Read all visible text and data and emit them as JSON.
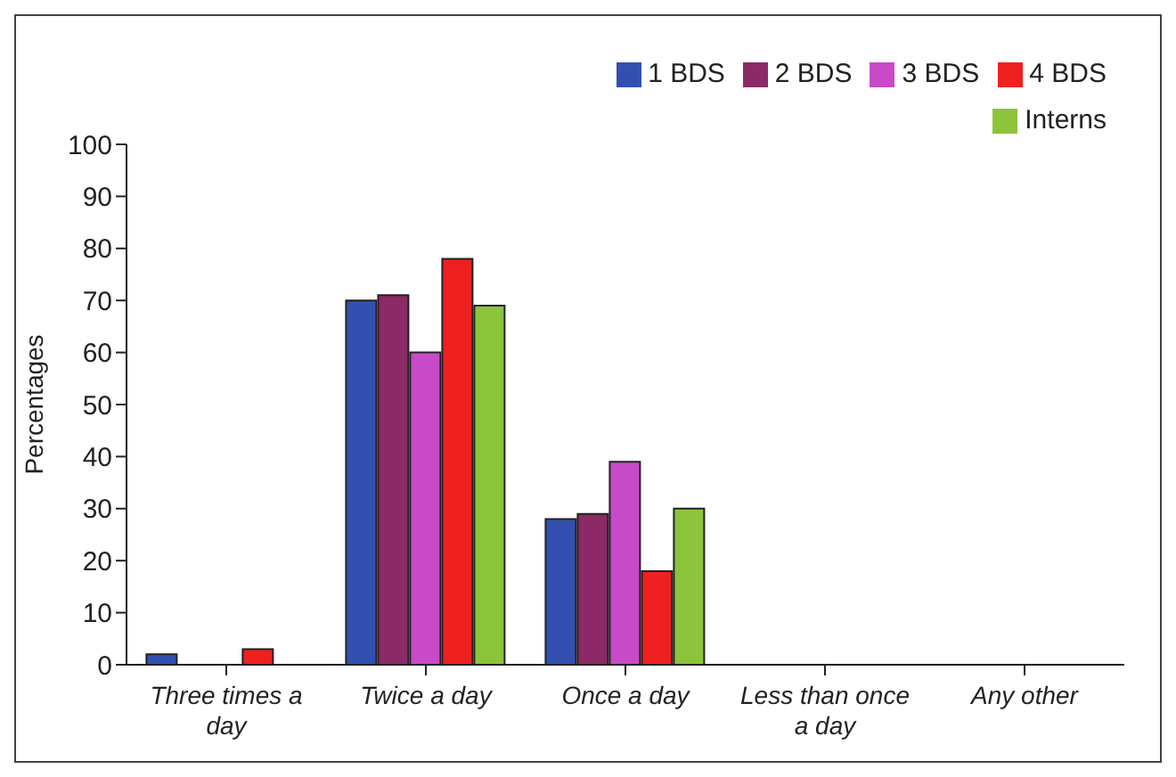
{
  "chart_data": {
    "type": "bar",
    "ylabel": "Percentages",
    "categories": [
      "Three times a day",
      "Twice a day",
      "Once a day",
      "Less than once a day",
      "Any other"
    ],
    "series": [
      {
        "name": "1 BDS",
        "color": "#3350b0",
        "values": [
          2,
          70,
          28,
          0,
          0
        ]
      },
      {
        "name": "2 BDS",
        "color": "#8b2a66",
        "values": [
          0,
          71,
          29,
          0,
          0
        ]
      },
      {
        "name": "3 BDS",
        "color": "#c84ac8",
        "values": [
          0,
          60,
          39,
          0,
          0
        ]
      },
      {
        "name": "4 BDS",
        "color": "#ee2020",
        "values": [
          3,
          78,
          18,
          0,
          0
        ]
      },
      {
        "name": "Interns",
        "color": "#8cc43c",
        "values": [
          0,
          69,
          30,
          0,
          0
        ]
      }
    ],
    "ylim": [
      0,
      100
    ],
    "yticks": [
      0,
      10,
      20,
      30,
      40,
      50,
      60,
      70,
      80,
      90,
      100
    ],
    "grid": false,
    "legend": "top right"
  }
}
